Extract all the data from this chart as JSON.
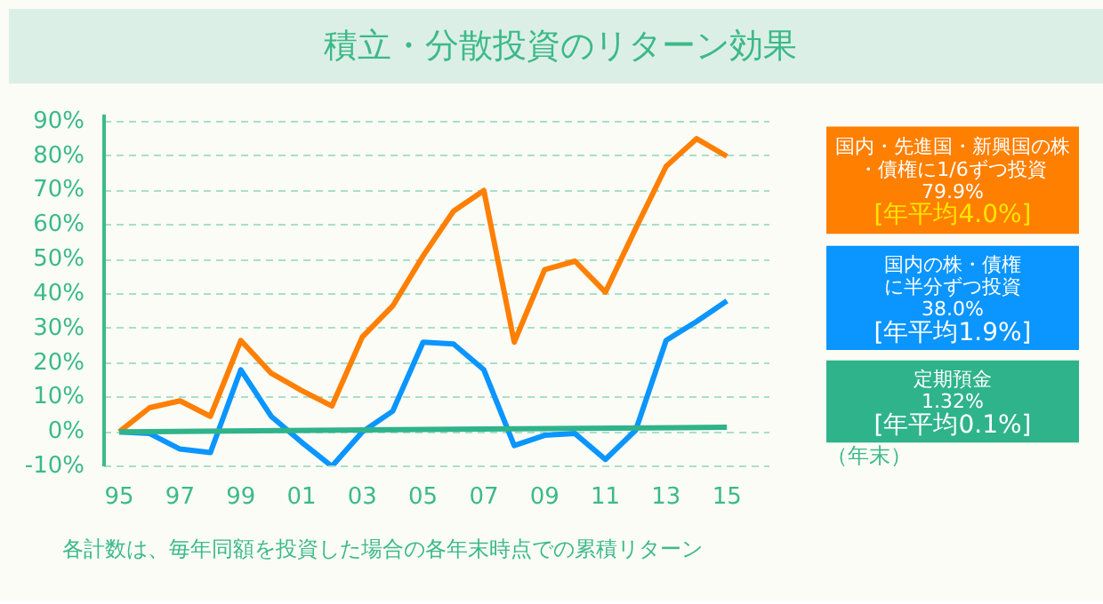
{
  "chart_data": {
    "type": "line",
    "title": "積立・分散投資のリターン効果",
    "xlabel": "（年末）",
    "x": [
      1995,
      1996,
      1997,
      1998,
      1999,
      2000,
      2001,
      2002,
      2003,
      2004,
      2005,
      2006,
      2007,
      2008,
      2009,
      2010,
      2011,
      2012,
      2013,
      2014,
      2015
    ],
    "series": [
      {
        "name": "国内・先進国・新興国の株・債権に1/6ずつ投資",
        "color": "#ff7f00",
        "values": [
          0,
          7,
          9,
          4.5,
          26.5,
          17,
          12,
          7.5,
          27.5,
          36.5,
          51,
          64,
          70,
          26,
          47,
          49.5,
          40.5,
          59,
          77,
          85,
          79.9
        ]
      },
      {
        "name": "国内の株・債権に半分ずつ投資",
        "color": "#0a95ff",
        "values": [
          0,
          -0.5,
          -5,
          -6,
          18,
          4.5,
          -3,
          -10,
          0,
          6,
          26,
          25.5,
          18,
          -4,
          -1,
          -0.5,
          -8,
          0.5,
          26.5,
          32,
          38
        ]
      },
      {
        "name": "定期預金",
        "color": "#2fb38a",
        "x": [
          1995,
          2005,
          2015
        ],
        "values": [
          0,
          0.7,
          1.32
        ]
      }
    ],
    "xlim": [
      1994.5,
      2016.4
    ],
    "xticks": [
      {
        "value": 1995,
        "label": "95"
      },
      {
        "value": 1997,
        "label": "97"
      },
      {
        "value": 1999,
        "label": "99"
      },
      {
        "value": 2001,
        "label": "01"
      },
      {
        "value": 2003,
        "label": "03"
      },
      {
        "value": 2005,
        "label": "05"
      },
      {
        "value": 2007,
        "label": "07"
      },
      {
        "value": 2009,
        "label": "09"
      },
      {
        "value": 2011,
        "label": "11"
      },
      {
        "value": 2013,
        "label": "13"
      },
      {
        "value": 2015,
        "label": "15"
      }
    ],
    "ylim": [
      -10,
      92
    ],
    "yticks": [
      {
        "value": -10,
        "label": "-10%"
      },
      {
        "value": 0,
        "label": "0%"
      },
      {
        "value": 10,
        "label": "10%"
      },
      {
        "value": 20,
        "label": "20%"
      },
      {
        "value": 30,
        "label": "30%"
      },
      {
        "value": 40,
        "label": "40%"
      },
      {
        "value": 50,
        "label": "50%"
      },
      {
        "value": 60,
        "label": "60%"
      },
      {
        "value": 70,
        "label": "70%"
      },
      {
        "value": 80,
        "label": "80%"
      },
      {
        "value": 90,
        "label": "90%"
      }
    ],
    "grid": "y",
    "annotations": [
      "79.9%",
      "[年平均4.0%]",
      "38.0%",
      "[年平均1.9%]",
      "1.32%",
      "[年平均0.1%]",
      "各計数は、毎年同額を投資した場合の各年末時点での累積リターン"
    ]
  }
}
